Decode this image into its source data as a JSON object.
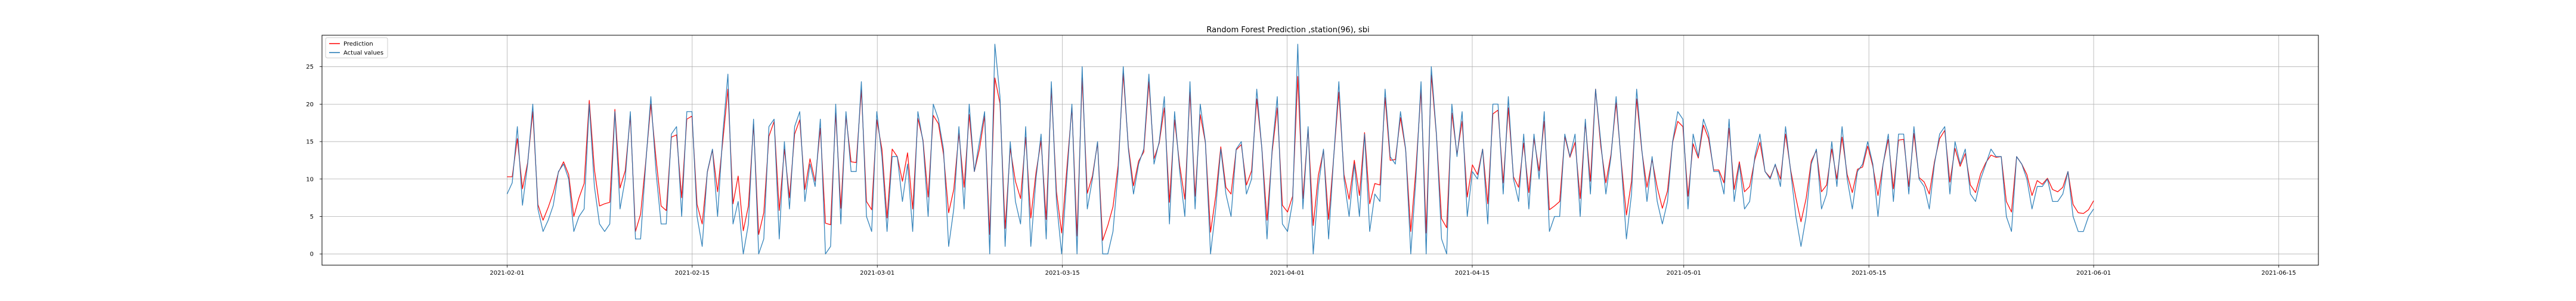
{
  "chart_data": {
    "type": "line",
    "title": "Random Forest Prediction ,station(96), sbi",
    "xlabel": "",
    "ylabel": "",
    "x_start": "2021-02-01",
    "x_end": "2021-06-01",
    "xlim": [
      "2021-01-18",
      "2021-06-18"
    ],
    "ylim": [
      -1.5,
      29.2
    ],
    "x_ticks": [
      "2021-02-01",
      "2021-02-15",
      "2021-03-01",
      "2021-03-15",
      "2021-04-01",
      "2021-04-15",
      "2021-05-01",
      "2021-05-15",
      "2021-06-01",
      "2021-06-15"
    ],
    "y_ticks": [
      0,
      5,
      10,
      15,
      20,
      25
    ],
    "grid": true,
    "legend_position": "top-left",
    "series": [
      {
        "name": "Prediction",
        "color": "#ff0000",
        "values": [
          10.3,
          10.3,
          15.4,
          8.7,
          12.2,
          19.0,
          6.6,
          4.5,
          6.2,
          8.2,
          10.9,
          12.3,
          10.6,
          5.0,
          7.5,
          9.4,
          20.5,
          11.3,
          6.4,
          6.7,
          6.9,
          19.3,
          8.8,
          11.1,
          18.4,
          3.0,
          5.3,
          12.3,
          20.0,
          12.8,
          6.4,
          5.8,
          15.6,
          15.9,
          7.5,
          18.0,
          18.4,
          6.6,
          4.0,
          10.9,
          13.9,
          8.3,
          15.0,
          22.0,
          6.7,
          10.4,
          3.1,
          6.4,
          17.3,
          2.6,
          5.5,
          15.7,
          17.7,
          5.8,
          14.0,
          7.5,
          16.0,
          17.9,
          8.6,
          12.7,
          9.7,
          16.8,
          4.1,
          3.9,
          18.8,
          6.1,
          18.4,
          12.3,
          12.2,
          21.9,
          7.0,
          5.9,
          17.9,
          14.0,
          4.8,
          14.0,
          13.0,
          9.7,
          13.5,
          6.0,
          18.1,
          15.2,
          7.6,
          18.5,
          17.4,
          13.3,
          5.5,
          8.6,
          16.1,
          8.9,
          18.6,
          11.0,
          14.0,
          18.4,
          2.6,
          23.5,
          20.1,
          3.4,
          14.1,
          9.7,
          7.4,
          15.6,
          4.8,
          10.8,
          15.1,
          4.6,
          22.1,
          8.3,
          2.8,
          11.3,
          19.5,
          2.4,
          23.5,
          8.1,
          10.4,
          14.8,
          1.8,
          3.8,
          6.3,
          11.8,
          24.1,
          14.3,
          9.1,
          12.4,
          13.6,
          23.0,
          12.7,
          14.8,
          19.5,
          6.9,
          17.9,
          11.8,
          7.3,
          21.6,
          7.7,
          18.6,
          14.9,
          2.9,
          7.7,
          14.3,
          8.9,
          8.0,
          13.9,
          14.6,
          9.2,
          11.1,
          20.7,
          14.1,
          4.5,
          13.6,
          19.5,
          6.5,
          5.6,
          7.7,
          23.7,
          7.4,
          16.7,
          3.8,
          10.5,
          13.8,
          4.6,
          13.0,
          21.6,
          10.6,
          7.3,
          12.5,
          7.8,
          16.2,
          6.7,
          9.4,
          9.2,
          20.9,
          12.5,
          12.6,
          18.2,
          13.9,
          3.0,
          11.3,
          21.9,
          2.8,
          23.9,
          15.9,
          4.7,
          3.5,
          18.8,
          13.3,
          17.7,
          7.6,
          11.9,
          10.6,
          14.0,
          6.7,
          18.7,
          19.2,
          9.5,
          19.5,
          10.3,
          8.9,
          14.8,
          8.2,
          15.4,
          11.1,
          17.7,
          5.9,
          6.4,
          7.0,
          15.7,
          12.9,
          14.9,
          7.4,
          17.5,
          9.7,
          22.0,
          14.4,
          9.5,
          13.3,
          20.2,
          12.3,
          5.2,
          9.7,
          20.7,
          13.8,
          8.9,
          12.6,
          8.9,
          6.1,
          8.4,
          14.9,
          17.7,
          17.0,
          7.7,
          14.7,
          12.8,
          17.2,
          15.4,
          11.2,
          11.2,
          9.5,
          16.8,
          8.6,
          12.3,
          8.3,
          9.0,
          12.6,
          14.9,
          11.0,
          10.2,
          11.9,
          10.0,
          16.0,
          11.2,
          7.5,
          4.3,
          7.4,
          12.4,
          13.8,
          8.3,
          9.2,
          14.0,
          10.0,
          15.6,
          10.6,
          8.2,
          11.3,
          11.6,
          14.4,
          11.7,
          7.8,
          12.0,
          15.3,
          8.7,
          15.2,
          15.3,
          9.0,
          16.1,
          10.2,
          9.6,
          8.0,
          12.3,
          15.4,
          16.5,
          9.6,
          14.1,
          11.7,
          13.4,
          9.2,
          8.2,
          10.7,
          12.2,
          13.2,
          12.9,
          13.0,
          7.0,
          5.6,
          13.0,
          12.0,
          10.6,
          7.8,
          9.8,
          9.3,
          10.1,
          8.6,
          8.3,
          8.9,
          11.0,
          6.6,
          5.5,
          5.4,
          5.9,
          7.1
        ]
      },
      {
        "name": "Actual values",
        "color": "#1f77b4",
        "values": [
          8.0,
          9.5,
          17.0,
          6.5,
          12.0,
          20.0,
          6.0,
          3.0,
          4.5,
          6.5,
          11.0,
          12.0,
          10.0,
          3.0,
          5.0,
          6.0,
          20.0,
          9.0,
          4.0,
          3.0,
          4.0,
          19.0,
          6.0,
          10.0,
          19.0,
          2.0,
          2.0,
          12.0,
          21.0,
          11.0,
          4.0,
          4.0,
          16.0,
          17.0,
          5.0,
          19.0,
          19.0,
          5.0,
          1.0,
          11.0,
          14.0,
          5.0,
          16.0,
          24.0,
          4.0,
          7.0,
          0.0,
          4.0,
          18.0,
          0.0,
          2.0,
          17.0,
          18.0,
          2.0,
          15.0,
          6.0,
          17.0,
          19.0,
          7.0,
          12.0,
          9.0,
          18.0,
          0.0,
          1.0,
          20.0,
          4.0,
          19.0,
          11.0,
          11.0,
          23.0,
          5.0,
          3.0,
          19.0,
          13.0,
          3.0,
          13.0,
          13.0,
          7.0,
          12.0,
          3.0,
          19.0,
          15.0,
          5.0,
          20.0,
          18.0,
          14.0,
          1.0,
          6.0,
          17.0,
          6.0,
          20.0,
          11.0,
          15.0,
          19.0,
          0.0,
          28.0,
          21.0,
          1.0,
          15.0,
          7.0,
          4.0,
          17.0,
          1.0,
          10.0,
          16.0,
          2.0,
          23.0,
          7.0,
          0.0,
          10.0,
          20.0,
          0.0,
          25.0,
          6.0,
          10.0,
          15.0,
          0.0,
          0.0,
          3.0,
          11.0,
          25.0,
          14.0,
          8.0,
          12.0,
          14.0,
          24.0,
          12.0,
          15.0,
          21.0,
          4.0,
          19.0,
          11.0,
          5.0,
          23.0,
          6.0,
          20.0,
          15.0,
          0.0,
          6.0,
          14.0,
          8.0,
          5.0,
          14.0,
          15.0,
          8.0,
          10.0,
          22.0,
          14.0,
          2.0,
          14.0,
          21.0,
          4.0,
          3.0,
          7.0,
          28.0,
          6.0,
          17.0,
          0.0,
          9.0,
          14.0,
          2.0,
          13.0,
          23.0,
          10.0,
          5.0,
          12.0,
          5.0,
          16.0,
          3.0,
          8.0,
          7.0,
          22.0,
          13.0,
          12.0,
          19.0,
          14.0,
          0.0,
          10.0,
          23.0,
          0.0,
          25.0,
          16.0,
          2.0,
          0.0,
          20.0,
          13.0,
          19.0,
          5.0,
          11.0,
          10.0,
          14.0,
          4.0,
          20.0,
          20.0,
          8.0,
          21.0,
          10.0,
          7.0,
          16.0,
          6.0,
          16.0,
          10.0,
          19.0,
          3.0,
          5.0,
          5.0,
          16.0,
          13.0,
          16.0,
          5.0,
          18.0,
          8.0,
          22.0,
          15.0,
          8.0,
          13.0,
          21.0,
          12.0,
          2.0,
          8.0,
          22.0,
          14.0,
          7.0,
          13.0,
          7.0,
          4.0,
          7.0,
          15.0,
          19.0,
          18.0,
          6.0,
          16.0,
          13.0,
          18.0,
          16.0,
          11.0,
          11.0,
          8.0,
          18.0,
          7.0,
          12.0,
          6.0,
          7.0,
          13.0,
          16.0,
          11.0,
          10.0,
          12.0,
          9.0,
          17.0,
          11.0,
          5.0,
          1.0,
          5.0,
          12.0,
          14.0,
          6.0,
          8.0,
          15.0,
          9.0,
          17.0,
          10.0,
          6.0,
          11.0,
          12.0,
          15.0,
          12.0,
          5.0,
          12.0,
          16.0,
          7.0,
          16.0,
          16.0,
          8.0,
          17.0,
          10.0,
          9.0,
          6.0,
          12.0,
          16.0,
          17.0,
          8.0,
          15.0,
          12.0,
          14.0,
          8.0,
          7.0,
          10.0,
          12.0,
          14.0,
          13.0,
          13.0,
          5.0,
          3.0,
          13.0,
          12.0,
          10.0,
          6.0,
          9.0,
          9.0,
          10.0,
          7.0,
          7.0,
          8.0,
          11.0,
          5.0,
          3.0,
          3.0,
          5.0,
          6.0
        ]
      }
    ]
  }
}
